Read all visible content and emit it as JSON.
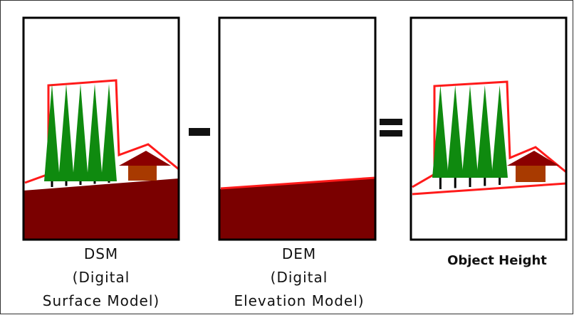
{
  "panels": [
    {
      "caption": [
        "DSM",
        "(Digital",
        "Surface Model)"
      ]
    },
    {
      "caption": [
        "DEM",
        "(Digital",
        "Elevation Model)"
      ]
    },
    {
      "caption": [
        "Object Height"
      ]
    }
  ]
}
